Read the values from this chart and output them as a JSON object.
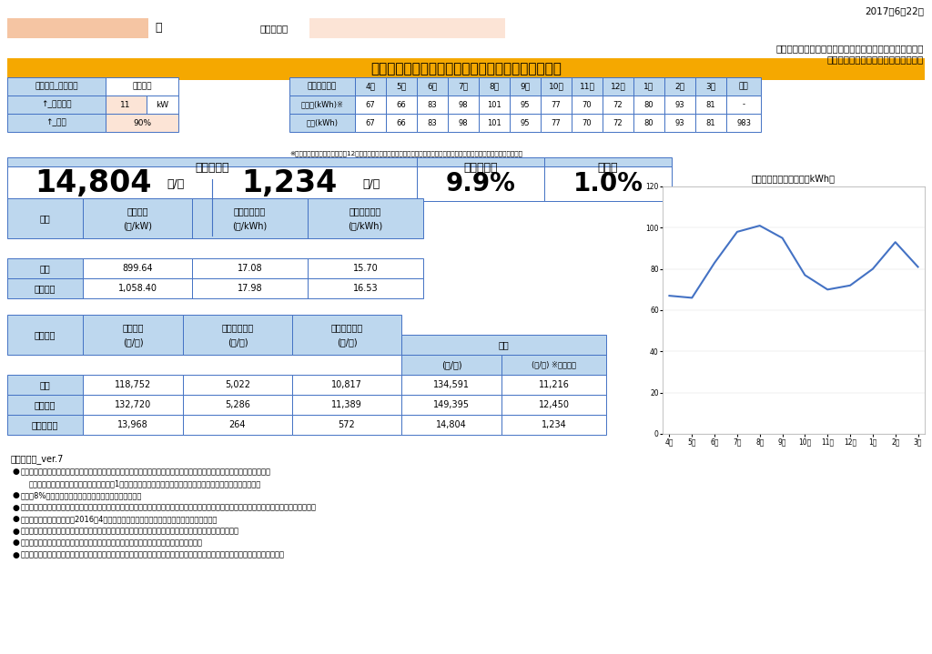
{
  "date": "2017年6月22日",
  "company1": "イーレックス・スパーク・エリアマーケティング株式会社",
  "company2": "株式会社モリカワ・モリカワのでんき",
  "title": "電気料金シミュレーション＿近畿エリア＿低圧電力",
  "title_bg": "#F5A800",
  "customer_label": "様",
  "usage_place": "ご使用場所",
  "usage_table": {
    "headers": [
      "お客様使用量",
      "4月",
      "5月",
      "6月",
      "7月",
      "8月",
      "9月",
      "10月",
      "11月",
      "12月",
      "1月",
      "2月",
      "3月",
      "年間"
    ],
    "row1_label": "ご入力(kWh)※",
    "row1": [
      "67",
      "66",
      "83",
      "98",
      "101",
      "95",
      "77",
      "70",
      "72",
      "80",
      "93",
      "81",
      "-"
    ],
    "row2_label": "推定(kWh)",
    "row2": [
      "67",
      "66",
      "83",
      "98",
      "101",
      "95",
      "77",
      "70",
      "72",
      "80",
      "93",
      "81",
      "983"
    ]
  },
  "note1": "※当料金プランへのお申込には12ケ月分のご入力が必須となっております。シミュレーションの精度を高める必要がございます",
  "summary": {
    "reduction_label": "推定削減額",
    "reduction_value": "14,804",
    "reduction_unit1": "円/年",
    "reduction_value2": "1,234",
    "reduction_unit2": "円/月",
    "rate_label": "推定削減率",
    "rate_value": "9.9%",
    "load_label": "負荷率",
    "load_value": "1.0%"
  },
  "unit_table": {
    "headers": [
      "単価",
      "基本料金\n(円/kW)",
      "夏季従量料金\n(円/kWh)",
      "他季従量料金\n(円/kWh)"
    ],
    "row1": [
      "当社",
      "899.64",
      "17.08",
      "15.70"
    ],
    "row2": [
      "関西電力",
      "1,058.40",
      "17.98",
      "16.53"
    ]
  },
  "cost_table": {
    "headers": [
      "料金試算",
      "基本料金\n(円/年)",
      "夏季従量料金\n(円/年)",
      "他季従量料金\n(円/年)",
      "(円/年)",
      "(円/月) ※通年平均"
    ],
    "row1": [
      "当社",
      "118,752",
      "5,022",
      "10,817",
      "134,591",
      "11,216"
    ],
    "row2": [
      "関西電力",
      "132,720",
      "5,286",
      "11,389",
      "149,395",
      "12,450"
    ],
    "row3": [
      "推定削減額",
      "13,968",
      "264",
      "572",
      "14,804",
      "1,234"
    ]
  },
  "chart_data": {
    "months": [
      "4月",
      "5月",
      "6月",
      "7月",
      "8月",
      "9月",
      "10月",
      "11月",
      "12月",
      "1月",
      "2月",
      "3月"
    ],
    "values": [
      67,
      66,
      83,
      98,
      101,
      95,
      77,
      70,
      72,
      80,
      93,
      81
    ],
    "title": "月々の推定使用電力量（kWh）"
  },
  "notes": [
    "ご注意事項_ver.7",
    "シミュレーションの結果、推定削減額が表示されない場合、大変申し訳ありませんが、申込をお断りさせていただきます。",
    "・ご契約には、お客様の契約電力に対する1年間の推定使用電力量が、当社の基準以下である必要がございます。",
    "消費税8%を含んだ単価、料金試算を提示しております。",
    "当社は力率割引または力率割増を適用しておりませんが、関西電力の基本料金には力率割引または力率割増が適用されているものがございます。",
    "供給開始日はお申込み後、2016年4月以降の最初の関西電力の検針日を予定しております。",
    "このシミュレーションは参考値ですので、お客様のご使用状況が変わった場合、各試算結果が変わります。",
    "試算結果には再生可能エネルギー発電促進賦課金・燃料費調整額は含まれておりません。",
    "供給開始後は再生可能エネルギー発電促進賦課金・燃料費調整額を加味してご請求いたします。（算定式は関西電力と同一です）"
  ],
  "bg_color": "#FFFFFF",
  "header_bg": "#BDD7EE",
  "border_color": "#4472C4",
  "input_bg": "#FCE4D6",
  "name_bg": "#F5C5A3"
}
